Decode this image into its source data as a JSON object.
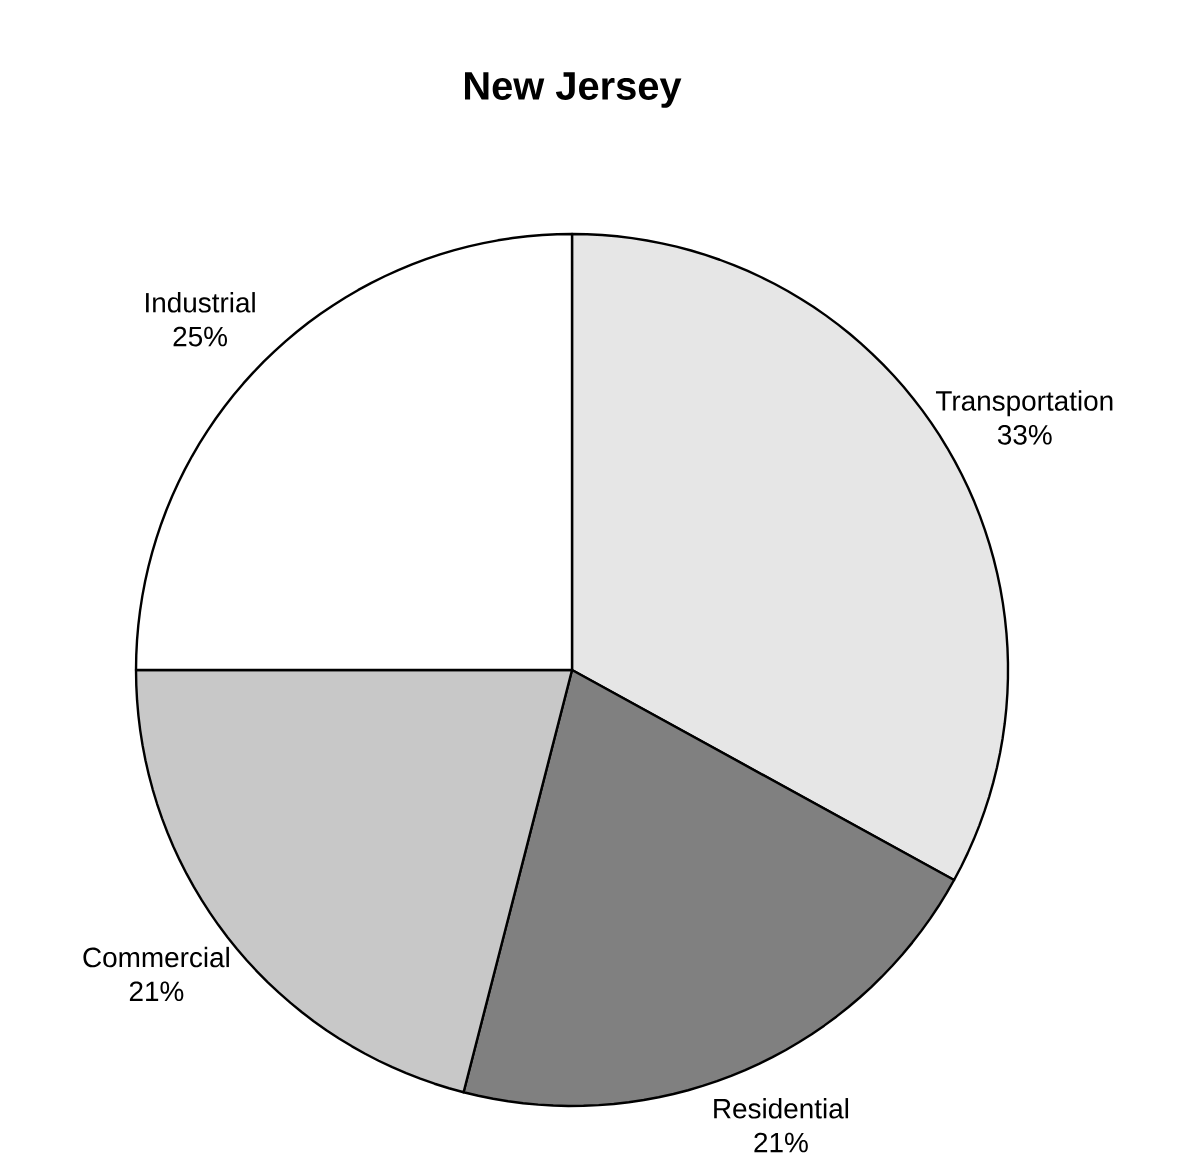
{
  "chart_data": {
    "type": "pie",
    "title": "New Jersey",
    "categories": [
      "Transportation",
      "Residential",
      "Commercial",
      "Industrial"
    ],
    "values": [
      33,
      21,
      21,
      25
    ],
    "value_labels": [
      "33%",
      "21%",
      "21%",
      "25%"
    ],
    "colors": [
      "#e6e6e6",
      "#808080",
      "#c8c8c8",
      "#ffffff"
    ]
  }
}
